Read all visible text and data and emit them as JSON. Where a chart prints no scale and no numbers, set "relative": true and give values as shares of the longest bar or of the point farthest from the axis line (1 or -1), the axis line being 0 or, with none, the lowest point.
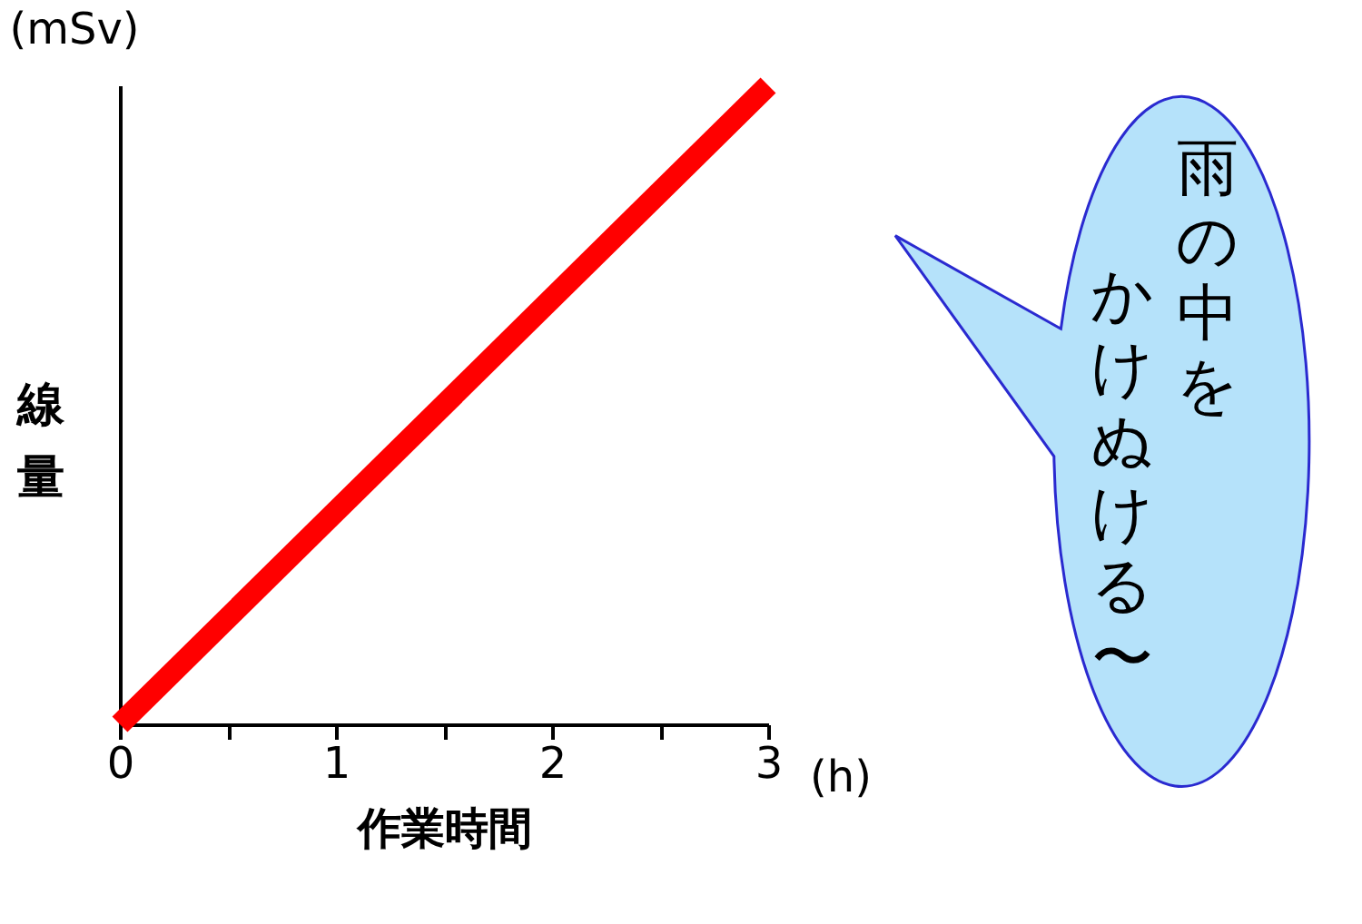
{
  "chart_data": {
    "type": "line",
    "relative": true,
    "xlabel": "作業時間",
    "ylabel": "線量",
    "x": [
      0,
      3
    ],
    "series": [
      {
        "color": "#ff0000",
        "values": [
          0,
          1
        ]
      }
    ],
    "xlim": [
      0,
      3
    ],
    "xticks": [
      0,
      {
        "value": 0.5,
        "label": null
      },
      1,
      {
        "value": 1.5,
        "label": null
      },
      2,
      {
        "value": 2.5,
        "label": null
      },
      3
    ],
    "grid": false,
    "marker": "none",
    "line_style": "solid",
    "annotations": [
      "(mSv)",
      "(h)",
      "雨の中を",
      "かけぬける〜"
    ]
  }
}
